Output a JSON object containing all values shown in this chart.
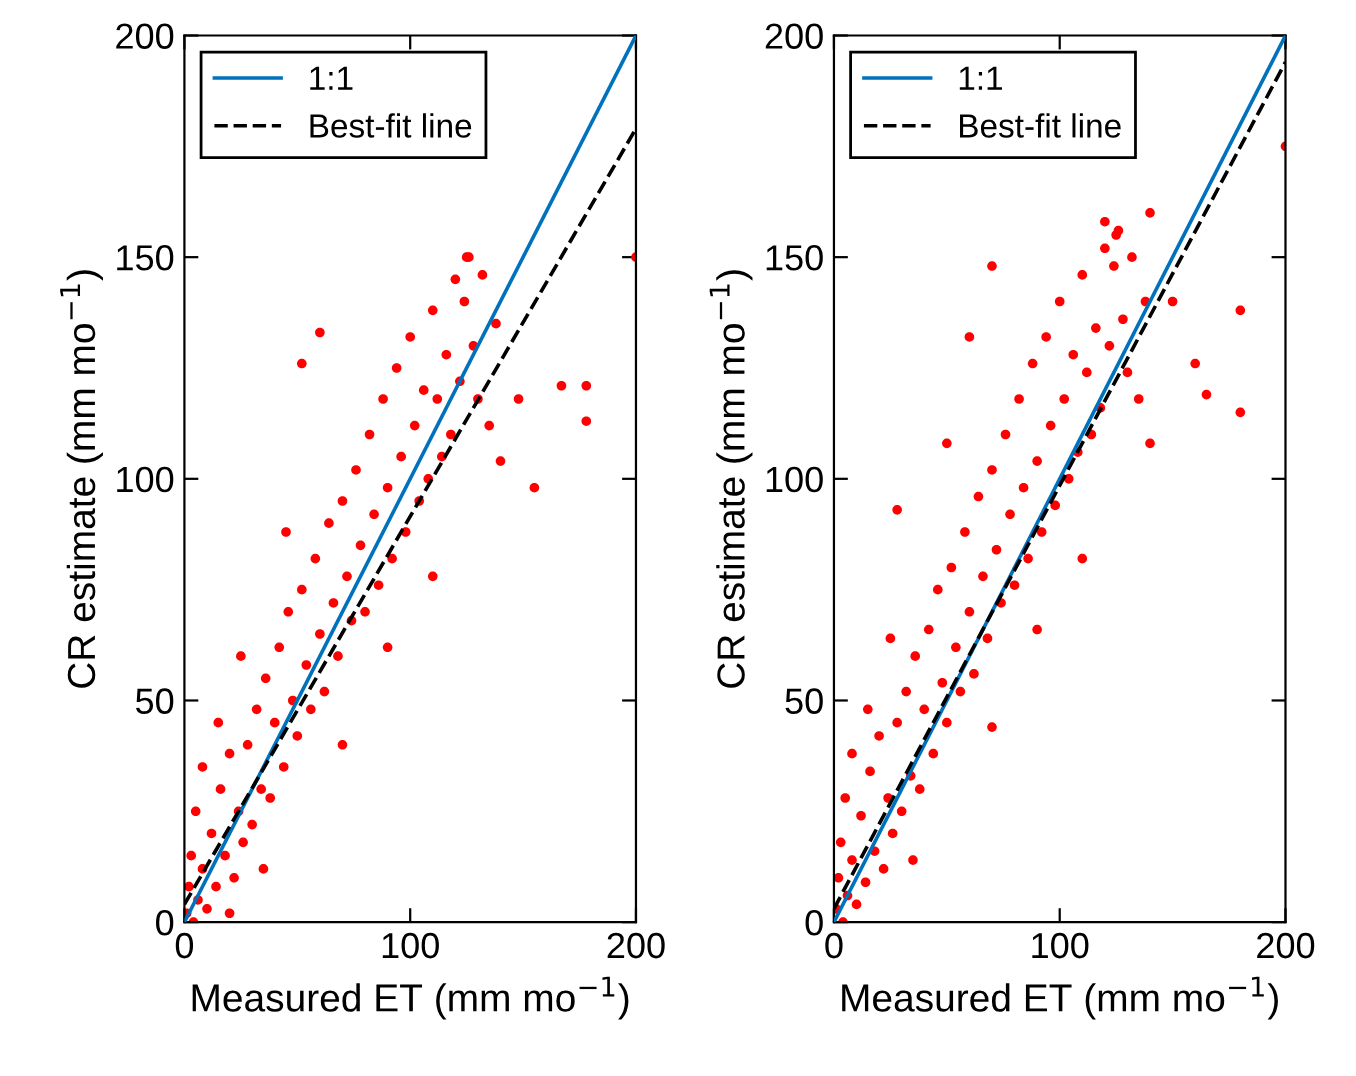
{
  "chart_data": [
    {
      "type": "scatter",
      "xlabel": "Measured ET (mm mo$^{−1}$)",
      "ylabel": "CR estimate (mm mo$^{−1}$)",
      "xlim": [
        0,
        200
      ],
      "ylim": [
        0,
        200
      ],
      "xticks": [
        0,
        100,
        200
      ],
      "yticks": [
        0,
        50,
        100,
        150,
        200
      ],
      "grid": false,
      "legend": "top left",
      "series": [
        {
          "marker": "circle",
          "color": "#ff0000",
          "x": [
            1,
            2,
            3,
            4,
            5,
            6,
            8,
            10,
            12,
            14,
            16,
            18,
            20,
            22,
            24,
            26,
            28,
            30,
            32,
            34,
            36,
            38,
            40,
            42,
            44,
            46,
            48,
            50,
            52,
            54,
            56,
            58,
            60,
            62,
            64,
            66,
            68,
            70,
            72,
            74,
            76,
            78,
            80,
            82,
            84,
            86,
            88,
            90,
            92,
            94,
            96,
            98,
            100,
            102,
            104,
            106,
            108,
            110,
            112,
            114,
            116,
            118,
            120,
            122,
            124,
            126,
            128,
            130,
            132,
            135,
            138,
            140,
            125,
            45,
            52,
            60,
            148,
            155,
            167,
            178,
            178,
            200,
            8,
            15,
            25,
            20,
            35,
            70,
            90,
            110
          ],
          "values": [
            2,
            8,
            15,
            0,
            25,
            5,
            12,
            3,
            20,
            8,
            30,
            15,
            38,
            10,
            25,
            18,
            40,
            22,
            48,
            30,
            55,
            28,
            45,
            62,
            35,
            70,
            50,
            42,
            75,
            58,
            48,
            82,
            65,
            52,
            90,
            72,
            60,
            95,
            78,
            68,
            102,
            85,
            70,
            110,
            92,
            76,
            118,
            98,
            82,
            125,
            105,
            88,
            132,
            112,
            95,
            120,
            100,
            138,
            118,
            105,
            128,
            110,
            145,
            122,
            140,
            150,
            130,
            118,
            146,
            112,
            135,
            104,
            150,
            88,
            126,
            133,
            118,
            98,
            121,
            121,
            113,
            150,
            35,
            45,
            60,
            2,
            12,
            40,
            62,
            78
          ]
        },
        {
          "type": "line",
          "name": "1:1",
          "color": "#0072bd",
          "line_style": "solid",
          "x": [
            0,
            200
          ],
          "values": [
            0,
            200
          ]
        },
        {
          "type": "line",
          "name": "Best-fit line",
          "color": "#000000",
          "line_style": "dashed",
          "x": [
            0,
            200
          ],
          "values": [
            4,
            179
          ]
        }
      ]
    },
    {
      "type": "scatter",
      "xlabel": "Measured ET (mm mo$^{−1}$)",
      "ylabel": "CR estimate (mm mo$^{−1}$)",
      "xlim": [
        0,
        200
      ],
      "ylim": [
        0,
        200
      ],
      "xticks": [
        0,
        100,
        200
      ],
      "yticks": [
        0,
        50,
        100,
        150,
        200
      ],
      "grid": false,
      "legend": "top left",
      "series": [
        {
          "marker": "circle",
          "color": "#ff0000",
          "x": [
            1,
            2,
            3,
            4,
            5,
            6,
            8,
            10,
            12,
            14,
            16,
            18,
            20,
            22,
            24,
            26,
            28,
            30,
            32,
            34,
            36,
            38,
            40,
            42,
            44,
            46,
            48,
            50,
            52,
            54,
            56,
            58,
            60,
            62,
            64,
            66,
            68,
            70,
            72,
            74,
            76,
            78,
            80,
            82,
            84,
            86,
            88,
            90,
            92,
            94,
            96,
            98,
            100,
            102,
            104,
            106,
            108,
            110,
            112,
            114,
            116,
            118,
            120,
            122,
            124,
            126,
            128,
            130,
            132,
            135,
            138,
            140,
            120,
            125,
            140,
            150,
            160,
            165,
            180,
            180,
            200,
            60,
            70,
            50,
            28,
            8,
            15,
            25,
            35,
            70,
            90,
            110
          ],
          "values": [
            3,
            10,
            18,
            0,
            28,
            6,
            14,
            4,
            24,
            9,
            34,
            16,
            42,
            12,
            28,
            20,
            45,
            25,
            52,
            33,
            60,
            30,
            48,
            66,
            38,
            75,
            54,
            45,
            80,
            62,
            52,
            88,
            70,
            56,
            96,
            78,
            64,
            102,
            84,
            72,
            110,
            92,
            76,
            118,
            98,
            82,
            126,
            104,
            88,
            132,
            112,
            94,
            140,
            118,
            100,
            128,
            106,
            146,
            124,
            110,
            134,
            116,
            152,
            130,
            148,
            156,
            136,
            124,
            150,
            118,
            140,
            108,
            158,
            155,
            160,
            140,
            126,
            119,
            138,
            115,
            175,
            132,
            148,
            108,
            93,
            38,
            48,
            64,
            14,
            44,
            66,
            82
          ]
        },
        {
          "type": "line",
          "name": "1:1",
          "color": "#0072bd",
          "line_style": "solid",
          "x": [
            0,
            200
          ],
          "values": [
            0,
            200
          ]
        },
        {
          "type": "line",
          "name": "Best-fit line",
          "color": "#000000",
          "line_style": "dashed",
          "x": [
            0,
            200
          ],
          "values": [
            3,
            194
          ]
        }
      ]
    }
  ]
}
